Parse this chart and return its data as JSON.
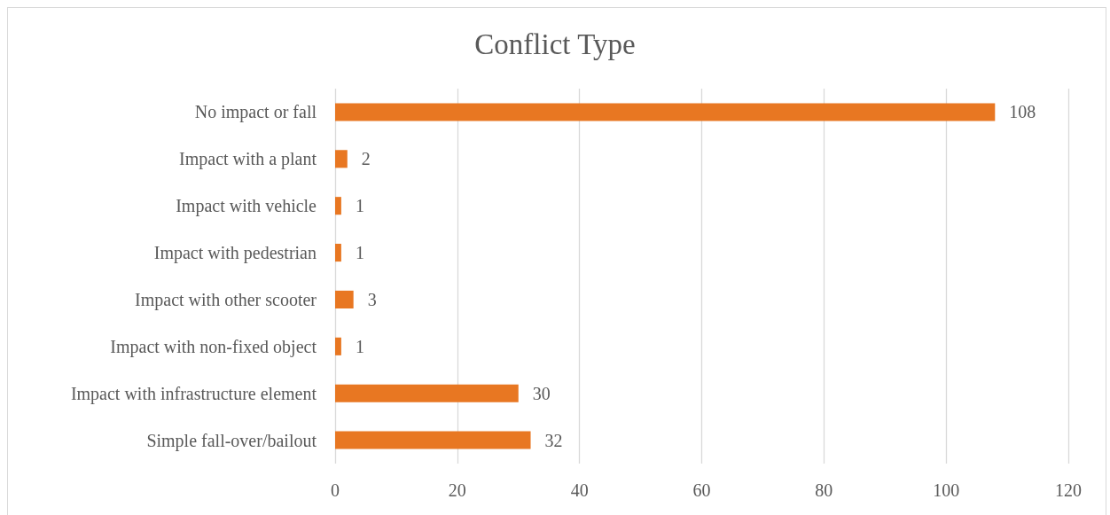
{
  "chart_data": {
    "type": "bar",
    "title": "Conflict Type",
    "orientation": "horizontal",
    "categories": [
      "No impact or fall",
      "Impact with a plant",
      "Impact with vehicle",
      "Impact with pedestrian",
      "Impact with other scooter",
      "Impact with non-fixed object",
      "Impact with infrastructure element",
      "Simple fall-over/bailout"
    ],
    "values": [
      108,
      2,
      1,
      1,
      3,
      1,
      30,
      32
    ],
    "color": "#e87722",
    "xlim": [
      0,
      120
    ],
    "xticks": [
      0,
      20,
      40,
      60,
      80,
      100,
      120
    ],
    "grid": "x",
    "data_labels": true
  }
}
